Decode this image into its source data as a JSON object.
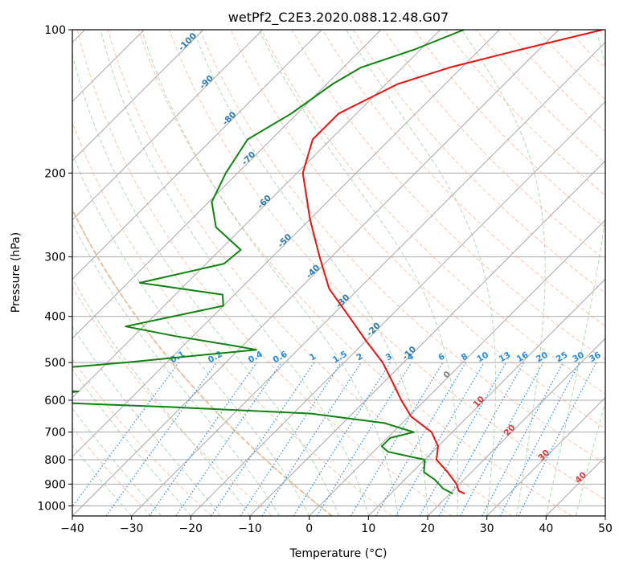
{
  "chart_data": {
    "type": "line",
    "subtype": "skew-T log-P diagram",
    "title": "wetPf2_C2E3.2020.088.12.48.G07",
    "xlabel": "Temperature (°C)",
    "ylabel": "Pressure (hPa)",
    "xlim": [
      -40,
      50
    ],
    "ylim": [
      1050,
      100
    ],
    "y_scale": "log",
    "x_ticks": [
      "−40",
      "−30",
      "−20",
      "−10",
      "0",
      "10",
      "20",
      "30",
      "40",
      "50"
    ],
    "y_ticks": [
      "100",
      "200",
      "300",
      "400",
      "500",
      "600",
      "700",
      "800",
      "900",
      "1000"
    ],
    "grid": true,
    "colors": {
      "temperature": "#e8120f",
      "dewpoint": "#0f820f",
      "isotherm": "#a8a8a8",
      "dry_adiabat": "#f4a07a",
      "moist_adiabat": "#7fc07f",
      "mixing_ratio": "#2a8ad6",
      "isobar": "#a8a8a8",
      "freezing_line": "#d9b98c"
    },
    "isotherm_labels_upper": [
      "-100",
      "-90",
      "-80",
      "-70",
      "-60",
      "-50",
      "-40",
      "-30",
      "-20",
      "-10"
    ],
    "isotherm_label_zero": "0",
    "isotherm_labels_lower": [
      "10",
      "20",
      "30",
      "40"
    ],
    "mixing_ratio_labels": [
      "0.1",
      "0.2",
      "0.4",
      "0.6",
      "1",
      "1.5",
      "2",
      "3",
      "4",
      "6",
      "8",
      "10",
      "13",
      "16",
      "20",
      "25",
      "30",
      "36"
    ],
    "series": [
      {
        "name": "Temperature",
        "points": [
          [
            100,
            -32.6
          ],
          [
            110,
            -43.0
          ],
          [
            120,
            -52.0
          ],
          [
            130,
            -58.0
          ],
          [
            150,
            -63.0
          ],
          [
            170,
            -63.0
          ],
          [
            200,
            -59.0
          ],
          [
            250,
            -50.0
          ],
          [
            300,
            -42.0
          ],
          [
            350,
            -35.0
          ],
          [
            400,
            -27.0
          ],
          [
            450,
            -20.0
          ],
          [
            500,
            -13.5
          ],
          [
            550,
            -8.5
          ],
          [
            600,
            -4.0
          ],
          [
            650,
            0.5
          ],
          [
            700,
            6.5
          ],
          [
            750,
            10.0
          ],
          [
            800,
            12.0
          ],
          [
            850,
            16.0
          ],
          [
            900,
            19.5
          ],
          [
            930,
            21.0
          ],
          [
            943,
            22.5
          ]
        ]
      },
      {
        "name": "Dewpoint",
        "points": [
          [
            100,
            -56.0
          ],
          [
            110,
            -61.0
          ],
          [
            120,
            -67.0
          ],
          [
            130,
            -69.0
          ],
          [
            150,
            -71.0
          ],
          [
            170,
            -74.0
          ],
          [
            200,
            -72.0
          ],
          [
            230,
            -69.5
          ],
          [
            260,
            -64.5
          ],
          [
            290,
            -56.5
          ],
          [
            310,
            -57.0
          ],
          [
            340,
            -68.0
          ],
          [
            360,
            -52.0
          ],
          [
            380,
            -50.0
          ],
          [
            420,
            -63.0
          ],
          [
            440,
            -53.0
          ],
          [
            460,
            -42.0
          ],
          [
            470,
            -37.0
          ],
          [
            500,
            -57.0
          ],
          [
            530,
            -79.0
          ],
          [
            560,
            -76.0
          ],
          [
            575,
            -60.0
          ],
          [
            600,
            -73.0
          ],
          [
            620,
            -42.0
          ],
          [
            640,
            -17.0
          ],
          [
            670,
            -3.0
          ],
          [
            700,
            3.5
          ],
          [
            720,
            0.5
          ],
          [
            750,
            0.5
          ],
          [
            770,
            2.5
          ],
          [
            800,
            10.0
          ],
          [
            850,
            12.0
          ],
          [
            880,
            15.0
          ],
          [
            920,
            18.0
          ],
          [
            943,
            20.5
          ]
        ]
      }
    ]
  }
}
